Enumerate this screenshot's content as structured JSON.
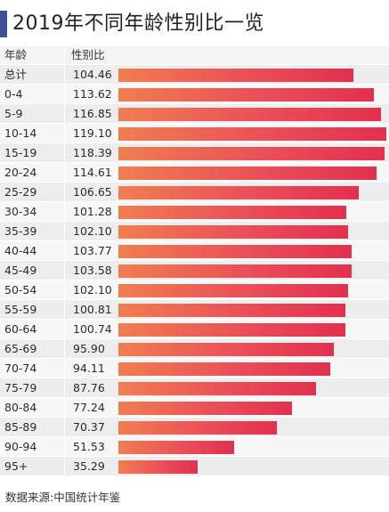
{
  "title": "2019年不同年龄性别比一览",
  "header": {
    "age_label": "年龄",
    "ratio_label": "性别比"
  },
  "source": "数据来源:中国统计年鉴",
  "colors": {
    "accent": "#3d4f9a",
    "bar_start": "#f07e50",
    "bar_end": "#e2304f"
  },
  "chart_data": {
    "type": "bar",
    "orientation": "horizontal",
    "title": "2019年不同年龄性别比一览",
    "categories": [
      "总计",
      "0-4",
      "5-9",
      "10-14",
      "15-19",
      "20-24",
      "25-29",
      "30-34",
      "35-39",
      "40-44",
      "45-49",
      "50-54",
      "55-59",
      "60-64",
      "65-69",
      "70-74",
      "75-79",
      "80-84",
      "85-89",
      "90-94",
      "95+"
    ],
    "labels": [
      "104.46",
      "113.62",
      "116.85",
      "119.10",
      "118.39",
      "114.61",
      "106.65",
      "101.28",
      "102.10",
      "103.77",
      "103.58",
      "102.10",
      "100.81",
      "100.74",
      "95.90",
      "94.11",
      "87.76",
      "77.24",
      "70.37",
      "51.53",
      "35.29"
    ],
    "values": [
      104.46,
      113.62,
      116.85,
      119.1,
      118.39,
      114.61,
      106.65,
      101.28,
      102.1,
      103.77,
      103.58,
      102.1,
      100.81,
      100.74,
      95.9,
      94.11,
      87.76,
      77.24,
      70.37,
      51.53,
      35.29
    ],
    "xlim": [
      0,
      119.1
    ]
  }
}
